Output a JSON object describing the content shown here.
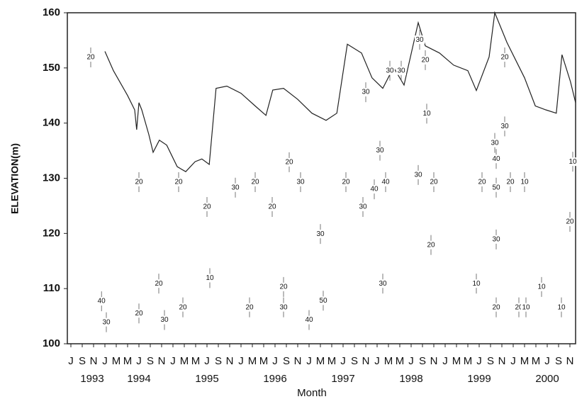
{
  "chart_data": {
    "type": "contour",
    "ylabel": "ELEVATION(m)",
    "xlabel": "Month",
    "xlim": [
      -0.625,
      89
    ],
    "ylim": [
      100,
      160
    ],
    "yticks": [
      100,
      110,
      120,
      130,
      140,
      150,
      160
    ],
    "xticks": [
      {
        "value": 0,
        "label": "J"
      },
      {
        "value": 2,
        "label": "S"
      },
      {
        "value": 4,
        "label": "N"
      },
      {
        "value": 6,
        "label": "J"
      },
      {
        "value": 8,
        "label": "M"
      },
      {
        "value": 10,
        "label": "M"
      },
      {
        "value": 12,
        "label": "J"
      },
      {
        "value": 14,
        "label": "S"
      },
      {
        "value": 16,
        "label": "N"
      },
      {
        "value": 18,
        "label": "J"
      },
      {
        "value": 20,
        "label": "M"
      },
      {
        "value": 22,
        "label": "M"
      },
      {
        "value": 24,
        "label": "J"
      },
      {
        "value": 26,
        "label": "S"
      },
      {
        "value": 28,
        "label": "N"
      },
      {
        "value": 30,
        "label": "J"
      },
      {
        "value": 32,
        "label": "M"
      },
      {
        "value": 34,
        "label": "M"
      },
      {
        "value": 36,
        "label": "J"
      },
      {
        "value": 38,
        "label": "S"
      },
      {
        "value": 40,
        "label": "N"
      },
      {
        "value": 42,
        "label": "J"
      },
      {
        "value": 44,
        "label": "M"
      },
      {
        "value": 46,
        "label": "M"
      },
      {
        "value": 48,
        "label": "J"
      },
      {
        "value": 50,
        "label": "S"
      },
      {
        "value": 52,
        "label": "N"
      },
      {
        "value": 54,
        "label": "J"
      },
      {
        "value": 56,
        "label": "M"
      },
      {
        "value": 58,
        "label": "M"
      },
      {
        "value": 60,
        "label": "J"
      },
      {
        "value": 62,
        "label": "S"
      },
      {
        "value": 64,
        "label": "N"
      },
      {
        "value": 66,
        "label": "J"
      },
      {
        "value": 68,
        "label": "M"
      },
      {
        "value": 70,
        "label": "M"
      },
      {
        "value": 72,
        "label": "J"
      },
      {
        "value": 74,
        "label": "S"
      },
      {
        "value": 76,
        "label": "N"
      },
      {
        "value": 78,
        "label": "J"
      },
      {
        "value": 80,
        "label": "M"
      },
      {
        "value": 82,
        "label": "M"
      },
      {
        "value": 84,
        "label": "J"
      },
      {
        "value": 86,
        "label": "S"
      },
      {
        "value": 88,
        "label": "N"
      }
    ],
    "year_labels": [
      {
        "value": 3.75,
        "label": "1993"
      },
      {
        "value": 12,
        "label": "1994"
      },
      {
        "value": 24,
        "label": "1995"
      },
      {
        "value": 36,
        "label": "1996"
      },
      {
        "value": 48,
        "label": "1997"
      },
      {
        "value": 60,
        "label": "1998"
      },
      {
        "value": 72,
        "label": "1999"
      },
      {
        "value": 84,
        "label": "2000"
      }
    ],
    "surface": {
      "x": [
        6,
        7.5,
        10,
        11.25,
        11.6,
        12,
        12.5,
        13.75,
        14.5,
        15.6,
        16.9,
        18.75,
        20.25,
        21.9,
        23.1,
        24.4,
        25.6,
        27.5,
        30,
        32.5,
        34.4,
        35.6,
        37.5,
        40,
        42.5,
        45,
        46.9,
        48.75,
        51.25,
        53.1,
        55,
        56.9,
        58.75,
        61.25,
        62.5,
        65,
        67.5,
        70,
        71.5,
        73.75,
        74.75,
        76.9,
        80,
        81.9,
        83.75,
        85.6,
        86.6,
        88.1,
        89
      ],
      "y": [
        153,
        149.5,
        145,
        142.4,
        138.8,
        143.7,
        142.4,
        137.9,
        134.7,
        136.9,
        136,
        132.1,
        131.2,
        133,
        133.5,
        132.5,
        146.3,
        146.7,
        145.4,
        143.1,
        141.4,
        146,
        146.3,
        144.3,
        141.8,
        140.5,
        141.8,
        154.3,
        152.7,
        148.2,
        146.3,
        150.1,
        146.9,
        158.2,
        154,
        152.7,
        150.5,
        149.5,
        145.9,
        152,
        160,
        154.6,
        148.2,
        143.1,
        142.4,
        141.8,
        152.4,
        147.5,
        143.7
      ]
    },
    "contour_labels": [
      {
        "x": 3.5,
        "y": 151.9,
        "value": 20
      },
      {
        "x": 6.25,
        "y": 103.9,
        "value": 30
      },
      {
        "x": 5.4,
        "y": 107.7,
        "value": 40
      },
      {
        "x": 12,
        "y": 105.5,
        "value": 20
      },
      {
        "x": 12,
        "y": 129.3,
        "value": 20
      },
      {
        "x": 15.5,
        "y": 110.9,
        "value": 20
      },
      {
        "x": 19,
        "y": 129.3,
        "value": 20
      },
      {
        "x": 19.75,
        "y": 106.6,
        "value": 20
      },
      {
        "x": 16.5,
        "y": 104.3,
        "value": 30
      },
      {
        "x": 24,
        "y": 124.8,
        "value": 20
      },
      {
        "x": 24.5,
        "y": 111.9,
        "value": 10
      },
      {
        "x": 29,
        "y": 128.3,
        "value": 30
      },
      {
        "x": 32.5,
        "y": 129.3,
        "value": 20
      },
      {
        "x": 31.5,
        "y": 106.6,
        "value": 20
      },
      {
        "x": 35.5,
        "y": 124.8,
        "value": 20
      },
      {
        "x": 38.5,
        "y": 132.9,
        "value": 20
      },
      {
        "x": 40.5,
        "y": 129.3,
        "value": 30
      },
      {
        "x": 37.5,
        "y": 110.3,
        "value": 20
      },
      {
        "x": 37.5,
        "y": 106.6,
        "value": 30
      },
      {
        "x": 44,
        "y": 119.9,
        "value": 30
      },
      {
        "x": 44.5,
        "y": 107.8,
        "value": 50
      },
      {
        "x": 42,
        "y": 104.3,
        "value": 40
      },
      {
        "x": 48.5,
        "y": 129.3,
        "value": 20
      },
      {
        "x": 51.5,
        "y": 124.8,
        "value": 30
      },
      {
        "x": 53.5,
        "y": 128,
        "value": 40
      },
      {
        "x": 52,
        "y": 145.6,
        "value": 30
      },
      {
        "x": 54.5,
        "y": 135,
        "value": 30
      },
      {
        "x": 55,
        "y": 110.9,
        "value": 30
      },
      {
        "x": 56.25,
        "y": 149.5,
        "value": 30
      },
      {
        "x": 58.25,
        "y": 149.5,
        "value": 30
      },
      {
        "x": 55.5,
        "y": 129.3,
        "value": 40
      },
      {
        "x": 61.5,
        "y": 155.1,
        "value": 30
      },
      {
        "x": 62.5,
        "y": 151.4,
        "value": 20
      },
      {
        "x": 62.75,
        "y": 141.7,
        "value": 10
      },
      {
        "x": 61.25,
        "y": 130.6,
        "value": 30
      },
      {
        "x": 64,
        "y": 129.3,
        "value": 20
      },
      {
        "x": 63.5,
        "y": 117.9,
        "value": 20
      },
      {
        "x": 72.5,
        "y": 129.3,
        "value": 20
      },
      {
        "x": 71.5,
        "y": 110.9,
        "value": 10
      },
      {
        "x": 74.75,
        "y": 136.4,
        "value": 30
      },
      {
        "x": 75,
        "y": 133.5,
        "value": 40
      },
      {
        "x": 75,
        "y": 128.3,
        "value": 50
      },
      {
        "x": 76.5,
        "y": 139.4,
        "value": 30
      },
      {
        "x": 76.5,
        "y": 151.9,
        "value": 20
      },
      {
        "x": 75,
        "y": 118.9,
        "value": 30
      },
      {
        "x": 75,
        "y": 106.6,
        "value": 20
      },
      {
        "x": 77.5,
        "y": 129.3,
        "value": 20
      },
      {
        "x": 80,
        "y": 129.3,
        "value": 10
      },
      {
        "x": 79,
        "y": 106.6,
        "value": 20
      },
      {
        "x": 80.25,
        "y": 106.6,
        "value": 10
      },
      {
        "x": 83,
        "y": 110.3,
        "value": 10
      },
      {
        "x": 88.5,
        "y": 133,
        "value": 10
      },
      {
        "x": 88,
        "y": 122.1,
        "value": 20
      },
      {
        "x": 86.5,
        "y": 106.6,
        "value": 10
      }
    ]
  }
}
